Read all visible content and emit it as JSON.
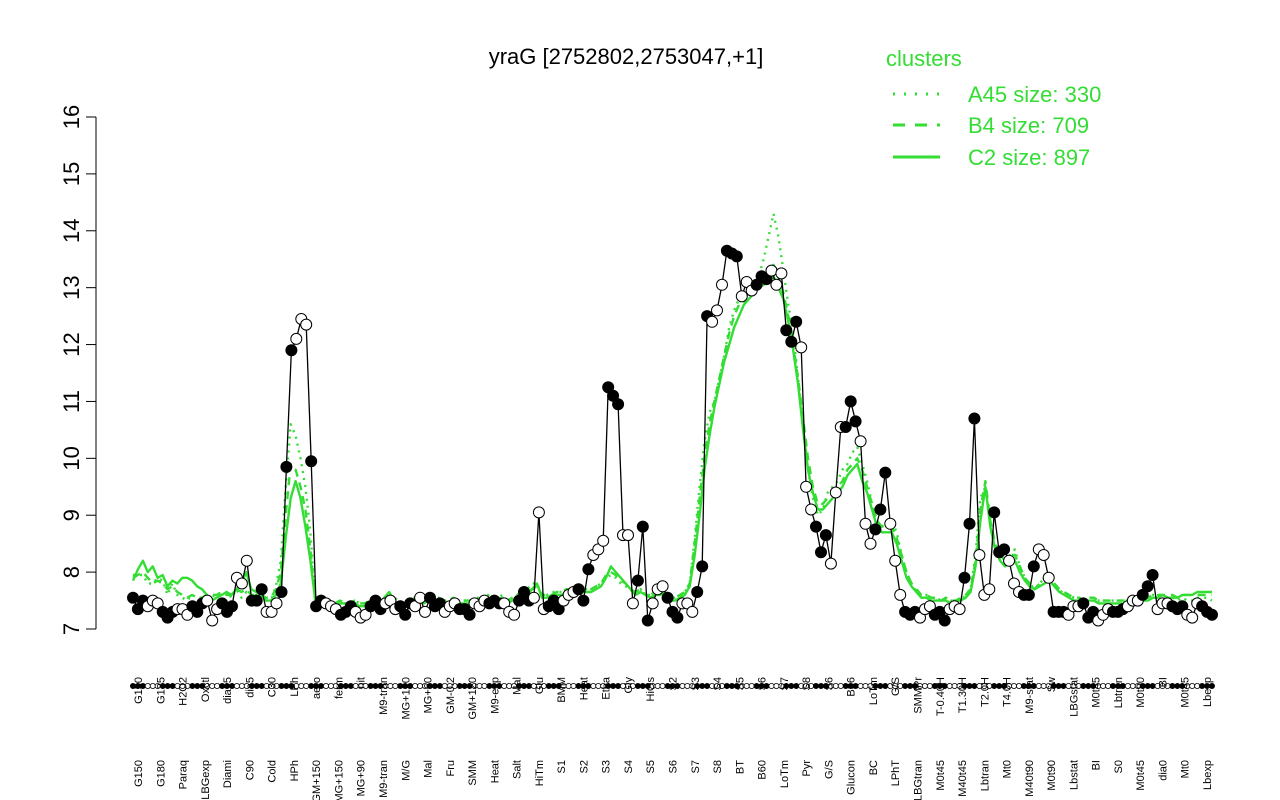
{
  "chart_data": {
    "type": "line",
    "title": "yraG [2752802,2753047,+1]",
    "ylim": [
      7,
      16
    ],
    "yticks": [
      "7",
      "8",
      "9",
      "10",
      "11",
      "12",
      "13",
      "14",
      "15",
      "16"
    ],
    "legend": {
      "title": "clusters",
      "position": "top-right",
      "entries": [
        {
          "label": "A45 size: 330",
          "style": "dotted",
          "color": "#33dd33"
        },
        {
          "label": "B4 size: 709",
          "style": "dashed",
          "color": "#33dd33"
        },
        {
          "label": "C2 size: 897",
          "style": "solid",
          "color": "#33dd33"
        }
      ]
    },
    "x_labels": [
      "G150",
      "G180",
      "Paraq",
      "LBGexp",
      "Diami",
      "C90",
      "Cold",
      "HPh",
      "GM+150",
      "MG+150",
      "MG+90",
      "M9-tran",
      "M/G",
      "Mal",
      "Fru",
      "SMM",
      "Heat",
      "Salt",
      "HiTm",
      "S1",
      "S2",
      "S3",
      "S4",
      "S5",
      "S6",
      "S7",
      "S8",
      "BT",
      "B60",
      "LoTm",
      "Pyr",
      "G/S",
      "Glucon",
      "BC",
      "LPhT",
      "LBGtran",
      "M0t45",
      "M40t45",
      "Lbtran",
      "Mt0",
      "M40t90",
      "M0t90",
      "Lbstat",
      "BI",
      "S0",
      "M0t45",
      "dia0",
      "Mt0",
      "Lbexp"
    ],
    "x_labels_top": [
      "G150",
      "G135",
      "H2O2",
      "Oxctl",
      "dia15",
      "dia5",
      "C30",
      "LPh",
      "aero",
      "ferm",
      "nit",
      "M9-tran",
      "MG+120",
      "MG+60",
      "GM-0.2",
      "GM+120",
      "M9-exp",
      "Mal",
      "Glu",
      "BMM",
      "Heat",
      "Etha",
      "Gly",
      "HiOs",
      "S2",
      "S3",
      "S4",
      "S5",
      "S6",
      "S7",
      "S8",
      "S6",
      "B36",
      "LoTm",
      "G/S",
      "SMMPr",
      "T-0.40H",
      "T1.30H",
      "T2.0H",
      "T4.0H",
      "M9-stat",
      "Sw",
      "LBGstat",
      "M0t45",
      "Lbtran",
      "M0t90",
      "BI",
      "M0t45",
      "Lbexp"
    ],
    "series": [
      {
        "name": "measured",
        "values": [
          7.55,
          7.35,
          7.5,
          7.4,
          7.5,
          7.45,
          7.3,
          7.2,
          7.3,
          7.35,
          7.35,
          7.25,
          7.4,
          7.3,
          7.45,
          7.5,
          7.15,
          7.35,
          7.45,
          7.3,
          7.4,
          7.9,
          7.8,
          8.2,
          7.5,
          7.5,
          7.7,
          7.3,
          7.3,
          7.45,
          7.65,
          9.85,
          11.9,
          12.1,
          12.45,
          12.35,
          9.95,
          7.4,
          7.5,
          7.45,
          7.4,
          7.35,
          7.25,
          7.3,
          7.4,
          7.3,
          7.2,
          7.25,
          7.4,
          7.5,
          7.35,
          7.45,
          7.5,
          7.35,
          7.4,
          7.25,
          7.45,
          7.4,
          7.55,
          7.3,
          7.55,
          7.4,
          7.45,
          7.3,
          7.4,
          7.45,
          7.35,
          7.35,
          7.25,
          7.45,
          7.4,
          7.5,
          7.45,
          7.5,
          7.45,
          7.45,
          7.3,
          7.25,
          7.5,
          7.65,
          7.5,
          7.55,
          9.05,
          7.35,
          7.4,
          7.5,
          7.35,
          7.5,
          7.6,
          7.65,
          7.7,
          7.5,
          8.05,
          8.3,
          8.4,
          8.55,
          11.25,
          11.1,
          10.95,
          8.65,
          8.65,
          7.45,
          7.85,
          8.8,
          7.15,
          7.45,
          7.7,
          7.75,
          7.55,
          7.3,
          7.2,
          7.45,
          7.45,
          7.3,
          7.65,
          8.1,
          12.5,
          12.4,
          12.6,
          13.05,
          13.65,
          13.6,
          13.55,
          12.85,
          13.1,
          12.95,
          13.05,
          13.2,
          13.15,
          13.3,
          13.05,
          13.25,
          12.25,
          12.05,
          12.4,
          11.95,
          9.5,
          9.1,
          8.8,
          8.35,
          8.65,
          8.15,
          9.4,
          10.55,
          10.55,
          11.0,
          10.65,
          10.3,
          8.85,
          8.5,
          8.75,
          9.1,
          9.75,
          8.85,
          8.2,
          7.6,
          7.3,
          7.25,
          7.3,
          7.2,
          7.35,
          7.4,
          7.25,
          7.3,
          7.15,
          7.35,
          7.4,
          7.35,
          7.9,
          8.85,
          10.7,
          8.3,
          7.6,
          7.7,
          9.05,
          8.35,
          8.4,
          8.2,
          7.8,
          7.65,
          7.6,
          7.6,
          8.1,
          8.4,
          8.3,
          7.9,
          7.3,
          7.3,
          7.3,
          7.25,
          7.4,
          7.4,
          7.45,
          7.2,
          7.3,
          7.15,
          7.25,
          7.35,
          7.3,
          7.3,
          7.35,
          7.4,
          7.5,
          7.5,
          7.6,
          7.75,
          7.95,
          7.35,
          7.45,
          7.45,
          7.4,
          7.35,
          7.4,
          7.25,
          7.2,
          7.45,
          7.4,
          7.3,
          7.25
        ]
      },
      {
        "name": "A45 size: 330",
        "values": [
          7.95,
          7.95,
          7.95,
          7.8,
          7.8,
          7.9,
          7.85,
          7.6,
          7.8,
          7.6,
          7.55,
          7.5,
          7.6,
          7.55,
          7.55,
          7.55,
          7.6,
          7.55,
          7.6,
          7.65,
          7.55,
          7.7,
          7.55,
          7.65,
          7.55,
          7.6,
          7.6,
          7.5,
          7.5,
          7.75,
          8.2,
          9.5,
          10.6,
          10.4,
          10.0,
          9.5,
          8.7,
          7.5,
          7.5,
          7.5,
          7.45,
          7.45,
          7.5,
          7.45,
          7.45,
          7.5,
          7.45,
          7.45,
          7.5,
          7.45,
          7.45,
          7.5,
          7.5,
          7.55,
          7.5,
          7.45,
          7.5,
          7.55,
          7.55,
          7.5,
          7.55,
          7.5,
          7.55,
          7.5,
          7.5,
          7.55,
          7.5,
          7.5,
          7.5,
          7.5,
          7.55,
          7.5,
          7.6,
          7.55,
          7.55,
          7.6,
          7.5,
          7.55,
          7.6,
          7.7,
          7.7,
          7.8,
          7.8,
          7.6,
          7.6,
          7.65,
          7.65,
          7.65,
          7.7,
          7.7,
          7.7,
          7.75,
          7.7,
          7.7,
          7.75,
          7.8,
          7.9,
          7.95,
          7.9,
          7.8,
          7.75,
          7.7,
          7.6,
          7.7,
          7.6,
          7.6,
          7.65,
          7.65,
          7.7,
          7.55,
          7.55,
          7.6,
          7.65,
          7.8,
          8.6,
          9.5,
          10.3,
          10.8,
          11.0,
          11.4,
          11.8,
          12.3,
          12.6,
          12.8,
          12.7,
          13.0,
          13.0,
          13.2,
          13.5,
          13.9,
          14.3,
          13.9,
          13.3,
          12.7,
          12.2,
          11.4,
          10.6,
          9.8,
          9.3,
          9.0,
          9.1,
          9.4,
          9.5,
          9.6,
          9.8,
          9.9,
          10.1,
          10.2,
          9.9,
          9.6,
          9.2,
          8.9,
          8.8,
          8.9,
          8.9,
          8.7,
          8.3,
          8.0,
          7.8,
          7.65,
          7.6,
          7.6,
          7.55,
          7.55,
          7.5,
          7.55,
          7.5,
          7.5,
          7.5,
          7.6,
          7.7,
          8.3,
          9.3,
          9.5,
          8.9,
          8.4,
          8.2,
          8.1,
          8.3,
          8.4,
          8.1,
          7.9,
          7.8,
          7.7,
          7.8,
          7.9,
          7.9,
          7.8,
          7.7,
          7.6,
          7.6,
          7.55,
          7.55,
          7.5,
          7.55,
          7.55,
          7.5,
          7.5,
          7.5,
          7.5,
          7.5,
          7.5,
          7.5,
          7.5,
          7.5,
          7.55,
          7.55,
          7.6,
          7.6,
          7.6,
          7.55,
          7.55,
          7.5,
          7.55,
          7.5,
          7.5,
          7.55,
          7.55,
          7.55,
          7.5
        ]
      },
      {
        "name": "B4 size: 709",
        "values": [
          7.9,
          7.95,
          8.0,
          7.9,
          7.8,
          7.85,
          7.8,
          7.7,
          7.75,
          7.65,
          7.6,
          7.55,
          7.6,
          7.55,
          7.55,
          7.6,
          7.6,
          7.6,
          7.65,
          7.6,
          7.6,
          7.7,
          7.65,
          7.7,
          7.6,
          7.6,
          7.6,
          7.55,
          7.55,
          7.7,
          8.0,
          9.0,
          9.9,
          9.8,
          9.5,
          9.1,
          8.4,
          7.5,
          7.5,
          7.5,
          7.5,
          7.45,
          7.5,
          7.45,
          7.45,
          7.5,
          7.45,
          7.45,
          7.5,
          7.45,
          7.45,
          7.5,
          7.5,
          7.5,
          7.5,
          7.45,
          7.5,
          7.5,
          7.55,
          7.5,
          7.55,
          7.5,
          7.5,
          7.5,
          7.5,
          7.55,
          7.5,
          7.5,
          7.5,
          7.5,
          7.5,
          7.5,
          7.55,
          7.55,
          7.55,
          7.55,
          7.5,
          7.55,
          7.6,
          7.65,
          7.65,
          7.7,
          7.75,
          7.6,
          7.6,
          7.6,
          7.65,
          7.65,
          7.7,
          7.7,
          7.7,
          7.75,
          7.7,
          7.7,
          7.75,
          7.8,
          7.95,
          8.0,
          7.95,
          7.85,
          7.8,
          7.7,
          7.65,
          7.7,
          7.6,
          7.6,
          7.65,
          7.65,
          7.7,
          7.55,
          7.55,
          7.6,
          7.65,
          7.8,
          8.5,
          9.3,
          10.0,
          10.6,
          11.0,
          11.4,
          11.8,
          12.2,
          12.5,
          12.7,
          12.8,
          12.9,
          13.0,
          13.1,
          13.2,
          13.3,
          13.4,
          13.2,
          12.9,
          12.5,
          12.0,
          11.4,
          10.7,
          10.0,
          9.5,
          9.2,
          9.2,
          9.3,
          9.4,
          9.5,
          9.6,
          9.8,
          9.9,
          10.0,
          9.8,
          9.5,
          9.2,
          8.9,
          8.8,
          8.8,
          8.8,
          8.6,
          8.3,
          8.0,
          7.8,
          7.7,
          7.6,
          7.6,
          7.55,
          7.55,
          7.5,
          7.55,
          7.5,
          7.5,
          7.55,
          7.6,
          7.7,
          8.2,
          9.1,
          9.6,
          8.9,
          8.5,
          8.3,
          8.2,
          8.3,
          8.3,
          8.1,
          7.9,
          7.8,
          7.7,
          7.8,
          7.9,
          7.9,
          7.8,
          7.7,
          7.65,
          7.6,
          7.55,
          7.55,
          7.5,
          7.55,
          7.55,
          7.5,
          7.5,
          7.5,
          7.5,
          7.5,
          7.5,
          7.5,
          7.5,
          7.5,
          7.55,
          7.55,
          7.6,
          7.6,
          7.6,
          7.6,
          7.6,
          7.55,
          7.6,
          7.6,
          7.6,
          7.6,
          7.6,
          7.6,
          7.6
        ]
      },
      {
        "name": "C2 size: 897",
        "values": [
          7.85,
          8.05,
          8.2,
          8.0,
          8.1,
          7.9,
          7.95,
          7.75,
          7.85,
          7.8,
          7.9,
          7.9,
          7.85,
          7.75,
          7.7,
          7.6,
          7.5,
          7.55,
          7.6,
          7.65,
          7.6,
          7.7,
          7.8,
          8.0,
          7.7,
          7.65,
          7.6,
          7.5,
          7.5,
          7.6,
          7.8,
          8.6,
          9.3,
          9.6,
          9.3,
          8.8,
          8.2,
          7.5,
          7.45,
          7.45,
          7.45,
          7.4,
          7.45,
          7.45,
          7.4,
          7.45,
          7.4,
          7.4,
          7.45,
          7.45,
          7.45,
          7.55,
          7.65,
          7.5,
          7.45,
          7.4,
          7.5,
          7.45,
          7.55,
          7.45,
          7.5,
          7.45,
          7.5,
          7.45,
          7.45,
          7.5,
          7.45,
          7.45,
          7.45,
          7.45,
          7.5,
          7.5,
          7.55,
          7.5,
          7.5,
          7.55,
          7.45,
          7.5,
          7.55,
          7.6,
          7.6,
          7.7,
          7.8,
          7.55,
          7.55,
          7.6,
          7.6,
          7.6,
          7.65,
          7.65,
          7.6,
          7.65,
          7.65,
          7.65,
          7.7,
          7.75,
          7.9,
          8.1,
          8.0,
          7.9,
          7.8,
          7.7,
          7.6,
          7.65,
          7.6,
          7.55,
          7.6,
          7.6,
          7.65,
          7.5,
          7.5,
          7.55,
          7.6,
          7.75,
          8.3,
          9.0,
          9.8,
          10.4,
          10.9,
          11.3,
          11.7,
          12.0,
          12.3,
          12.5,
          12.7,
          12.8,
          12.9,
          13.0,
          13.05,
          13.1,
          13.2,
          13.0,
          12.8,
          12.4,
          11.9,
          11.3,
          10.5,
          9.8,
          9.4,
          9.1,
          9.1,
          9.2,
          9.3,
          9.4,
          9.5,
          9.7,
          9.8,
          9.9,
          9.6,
          9.4,
          9.1,
          8.8,
          8.7,
          8.7,
          8.7,
          8.5,
          8.2,
          7.9,
          7.75,
          7.65,
          7.55,
          7.55,
          7.5,
          7.5,
          7.5,
          7.5,
          7.45,
          7.5,
          7.5,
          7.55,
          7.65,
          8.1,
          8.9,
          9.5,
          8.8,
          8.4,
          8.2,
          8.1,
          8.2,
          8.2,
          8.0,
          7.85,
          7.75,
          7.7,
          7.75,
          7.8,
          7.85,
          7.75,
          7.65,
          7.6,
          7.55,
          7.5,
          7.5,
          7.5,
          7.5,
          7.5,
          7.45,
          7.45,
          7.45,
          7.45,
          7.45,
          7.45,
          7.45,
          7.45,
          7.45,
          7.5,
          7.5,
          7.55,
          7.55,
          7.6,
          7.55,
          7.55,
          7.55,
          7.6,
          7.6,
          7.6,
          7.65,
          7.65,
          7.65,
          7.65
        ]
      }
    ]
  }
}
